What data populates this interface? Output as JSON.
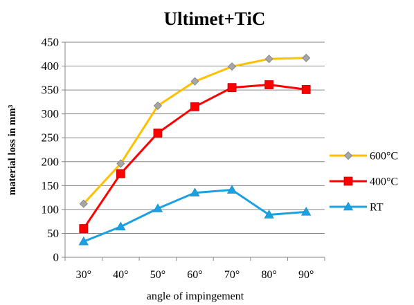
{
  "chart_data": {
    "type": "line",
    "title": "Ultimet+TiC",
    "xlabel": "angle of impingement",
    "ylabel": "material loss in mm³",
    "categories": [
      "30°",
      "40°",
      "50°",
      "60°",
      "70°",
      "80°",
      "90°"
    ],
    "ylim": [
      0,
      450
    ],
    "yticks": [
      0,
      50,
      100,
      150,
      200,
      250,
      300,
      350,
      400,
      450
    ],
    "grid": true,
    "legend_position": "right",
    "series": [
      {
        "name": "600°C",
        "color": "#FFC000",
        "marker": "diamond",
        "marker_color": "#A6A6A6",
        "values": [
          112,
          196,
          317,
          368,
          399,
          415,
          417
        ]
      },
      {
        "name": "400°C",
        "color": "#FF0000",
        "marker": "square",
        "marker_color": "#FF0000",
        "values": [
          60,
          175,
          260,
          315,
          355,
          361,
          351
        ]
      },
      {
        "name": "RT",
        "color": "#1BA1E2",
        "marker": "triangle",
        "marker_color": "#1BA1E2",
        "values": [
          33,
          64,
          102,
          135,
          141,
          89,
          95
        ]
      }
    ]
  }
}
